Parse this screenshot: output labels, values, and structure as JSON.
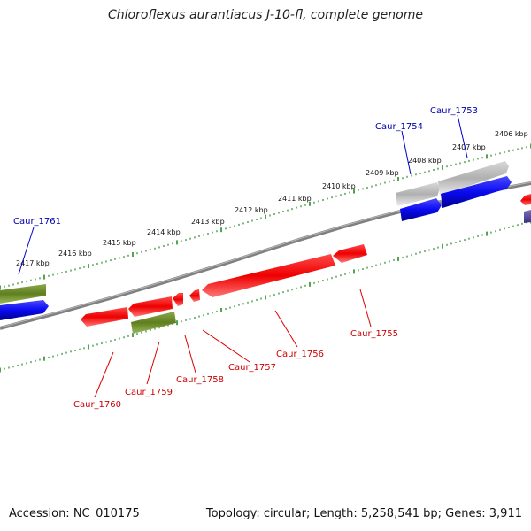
{
  "title": "Chloroflexus aurantiacus J-10-fl, complete genome",
  "footer": {
    "accession": "Accession: NC_010175",
    "summary": "Topology: circular; Length: 5,258,541 bp; Genes: 3,911"
  },
  "colors": {
    "backbone": "#7a7a7a",
    "ticks": "#2a8a2a",
    "forward_gene": "#0a0af0",
    "forward_pseudo": "#a8a8a8",
    "reverse_gene": "#ee1111",
    "rna_gene": "#6b8e23",
    "label_forward": "#0000aa",
    "label_reverse": "#cc0000"
  },
  "scale": {
    "unit": "kbp",
    "labels": [
      "2417 kbp",
      "2416 kbp",
      "2415 kbp",
      "2414 kbp",
      "2413 kbp",
      "2412 kbp",
      "2411 kbp",
      "2410 kbp",
      "2409 kbp",
      "2408 kbp",
      "2407 kbp",
      "2406 kbp"
    ]
  },
  "gene_labels": {
    "forward": [
      "Caur_1761",
      "Caur_1754",
      "Caur_1753"
    ],
    "reverse": [
      "Caur_1760",
      "Caur_1759",
      "Caur_1758",
      "Caur_1757",
      "Caur_1756",
      "Caur_1755"
    ]
  }
}
